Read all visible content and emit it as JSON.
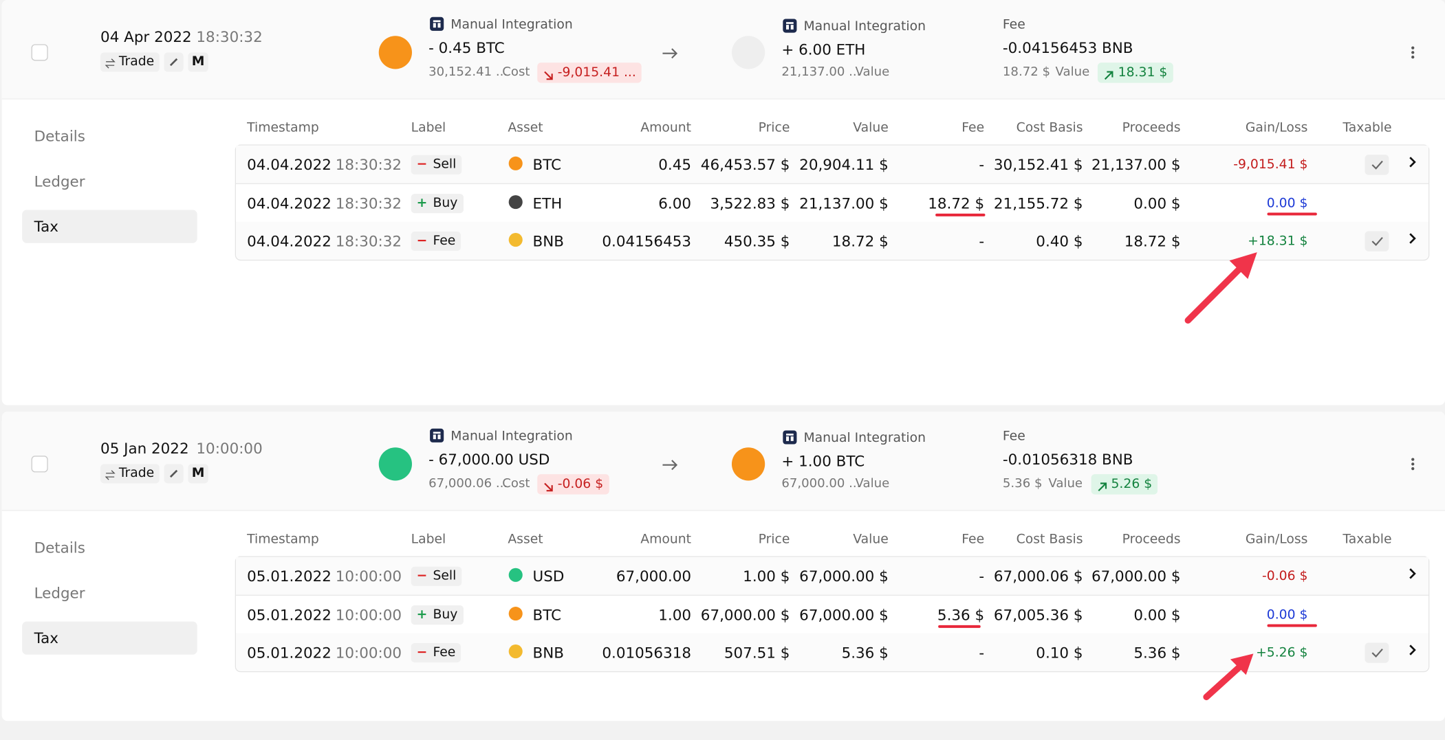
{
  "columns": [
    "Timestamp",
    "Label",
    "Asset",
    "Amount",
    "Price",
    "Value",
    "Fee",
    "Cost Basis",
    "Proceeds",
    "Gain/Loss",
    "Taxable"
  ],
  "tabs": [
    "Details",
    "Ledger",
    "Tax"
  ],
  "transactions": [
    {
      "date": "04 Apr 2022",
      "time": "18:30:32",
      "type": "Trade",
      "tag": "M",
      "sent": {
        "source": "Manual Integration",
        "amount": "- 0.45 BTC",
        "basis": "30,152.41 ...",
        "basis_label": "Cost",
        "change": "-9,015.41 ...",
        "color": "#f7931a"
      },
      "received": {
        "source": "Manual Integration",
        "amount": "+ 6.00 ETH",
        "basis": "21,137.00 ...",
        "basis_label": "Value",
        "color": "#eeeeee"
      },
      "fee": {
        "label": "Fee",
        "amount": "-0.04156453 BNB",
        "basis": "18.72 $",
        "basis_label": "Value",
        "change": "18.31 $"
      },
      "rows": [
        {
          "date": "04.04.2022",
          "time": "18:30:32",
          "sign": "−",
          "label": "Sell",
          "asset": "BTC",
          "color": "#f7931a",
          "amount": "0.45",
          "price": "46,453.57 $",
          "value": "20,904.11 $",
          "fee": "-",
          "cost_basis": "30,152.41 $",
          "proceeds": "21,137.00 $",
          "gain_loss": "-9,015.41 $",
          "taxable": true,
          "expandable": true
        },
        {
          "date": "04.04.2022",
          "time": "18:30:32",
          "sign": "+",
          "label": "Buy",
          "asset": "ETH",
          "color": "#444444",
          "amount": "6.00",
          "price": "3,522.83 $",
          "value": "21,137.00 $",
          "fee": "18.72 $",
          "cost_basis": "21,155.72 $",
          "proceeds": "0.00 $",
          "gain_loss": "0.00 $",
          "taxable": false,
          "expandable": false
        },
        {
          "date": "04.04.2022",
          "time": "18:30:32",
          "sign": "−",
          "label": "Fee",
          "asset": "BNB",
          "color": "#f3ba2f",
          "amount": "0.04156453",
          "price": "450.35 $",
          "value": "18.72 $",
          "fee": "-",
          "cost_basis": "0.40 $",
          "proceeds": "18.72 $",
          "gain_loss": "+18.31 $",
          "taxable": true,
          "expandable": true
        }
      ]
    },
    {
      "date": "05 Jan 2022",
      "time": "10:00:00",
      "type": "Trade",
      "tag": "M",
      "sent": {
        "source": "Manual Integration",
        "amount": "- 67,000.00 USD",
        "basis": "67,000.06 ...",
        "basis_label": "Cost",
        "change": "-0.06 $",
        "color": "#26c281"
      },
      "received": {
        "source": "Manual Integration",
        "amount": "+ 1.00 BTC",
        "basis": "67,000.00 ...",
        "basis_label": "Value",
        "color": "#f7931a"
      },
      "fee": {
        "label": "Fee",
        "amount": "-0.01056318 BNB",
        "basis": "5.36 $",
        "basis_label": "Value",
        "change": "5.26 $"
      },
      "rows": [
        {
          "date": "05.01.2022",
          "time": "10:00:00",
          "sign": "−",
          "label": "Sell",
          "asset": "USD",
          "color": "#26c281",
          "amount": "67,000.00",
          "price": "1.00 $",
          "value": "67,000.00 $",
          "fee": "-",
          "cost_basis": "67,000.06 $",
          "proceeds": "67,000.00 $",
          "gain_loss": "-0.06 $",
          "taxable": false,
          "expandable": true
        },
        {
          "date": "05.01.2022",
          "time": "10:00:00",
          "sign": "+",
          "label": "Buy",
          "asset": "BTC",
          "color": "#f7931a",
          "amount": "1.00",
          "price": "67,000.00 $",
          "value": "67,000.00 $",
          "fee": "5.36 $",
          "cost_basis": "67,005.36 $",
          "proceeds": "0.00 $",
          "gain_loss": "0.00 $",
          "taxable": false,
          "expandable": false
        },
        {
          "date": "05.01.2022",
          "time": "10:00:00",
          "sign": "−",
          "label": "Fee",
          "asset": "BNB",
          "color": "#f3ba2f",
          "amount": "0.01056318",
          "price": "507.51 $",
          "value": "5.36 $",
          "fee": "-",
          "cost_basis": "0.10 $",
          "proceeds": "5.36 $",
          "gain_loss": "+5.26 $",
          "taxable": true,
          "expandable": true
        }
      ]
    }
  ]
}
